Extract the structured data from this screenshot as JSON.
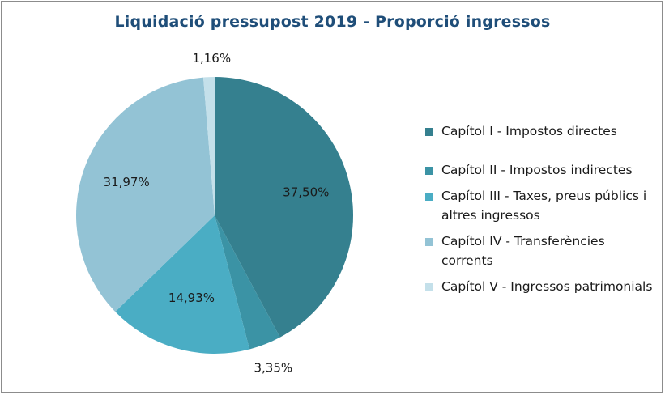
{
  "chart_data": {
    "type": "pie",
    "title": "Liquidació pressupost 2019 - Proporció ingressos",
    "series": [
      {
        "name": "Capítol I - Impostos directes",
        "value": 37.5,
        "label": "37,50%",
        "color": "#35808f"
      },
      {
        "name": "Capítol II - Impostos indirectes",
        "value": 3.35,
        "label": "3,35%",
        "color": "#3b93a5"
      },
      {
        "name": "Capítol III - Taxes, preus públics i altres ingressos",
        "value": 14.93,
        "label": "14,93%",
        "color": "#4aadc4"
      },
      {
        "name": "Capítol IV - Transferències corrents",
        "value": 31.97,
        "label": "31,97%",
        "color": "#93c3d5"
      },
      {
        "name": "Capítol V - Ingressos patrimonials",
        "value": 1.16,
        "label": "1,16%",
        "color": "#c4e0ea"
      }
    ],
    "legend_position": "right"
  }
}
